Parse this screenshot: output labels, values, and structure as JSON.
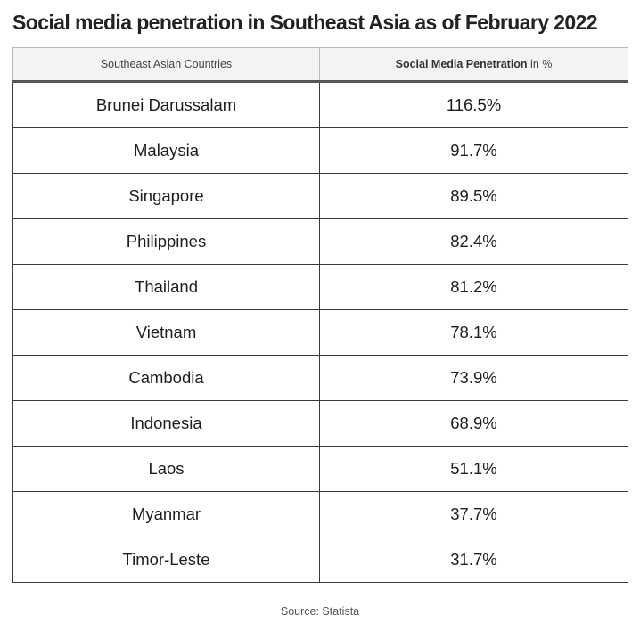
{
  "title": "Social media penetration in Southeast Asia as of February 2022",
  "source": "Source: Statista",
  "chart_data": {
    "type": "table",
    "title": "Social media penetration in Southeast Asia as of February 2022",
    "columns": [
      {
        "label": "Southeast Asian Countries"
      },
      {
        "label_strong": "Social Media Penetration",
        "label_rest": " in %"
      }
    ],
    "rows": [
      {
        "country": "Brunei Darussalam",
        "value_text": "116.5%",
        "value": 116.5
      },
      {
        "country": "Malaysia",
        "value_text": "91.7%",
        "value": 91.7
      },
      {
        "country": "Singapore",
        "value_text": "89.5%",
        "value": 89.5
      },
      {
        "country": "Philippines",
        "value_text": "82.4%",
        "value": 82.4
      },
      {
        "country": "Thailand",
        "value_text": "81.2%",
        "value": 81.2
      },
      {
        "country": "Vietnam",
        "value_text": "78.1%",
        "value": 78.1
      },
      {
        "country": "Cambodia",
        "value_text": "73.9%",
        "value": 73.9
      },
      {
        "country": "Indonesia",
        "value_text": "68.9%",
        "value": 68.9
      },
      {
        "country": "Laos",
        "value_text": "51.1%",
        "value": 51.1
      },
      {
        "country": "Myanmar",
        "value_text": "37.7%",
        "value": 37.7
      },
      {
        "country": "Timor-Leste",
        "value_text": "31.7%",
        "value": 31.7
      }
    ]
  }
}
